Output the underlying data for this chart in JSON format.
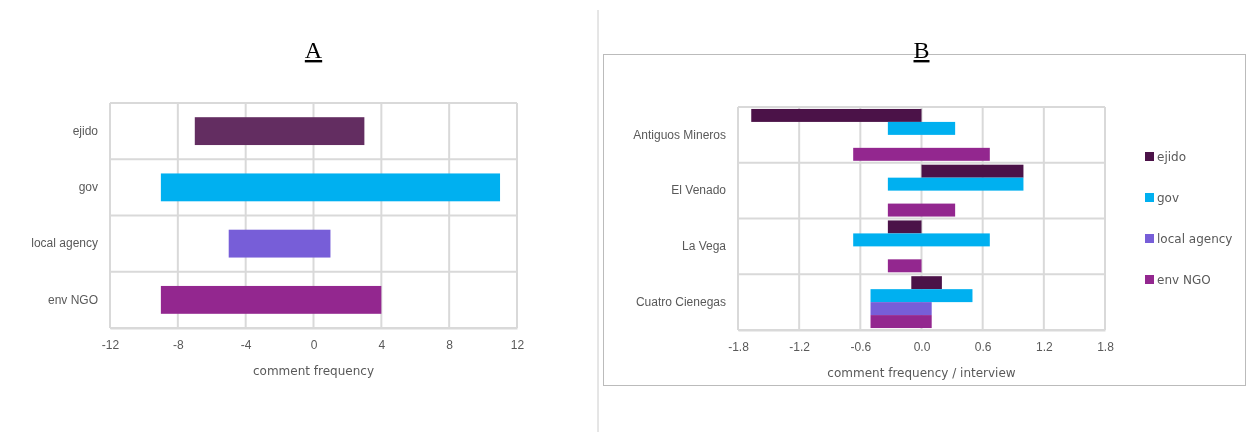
{
  "chart_data": [
    {
      "type": "bar",
      "orientation": "horizontal",
      "title": "A",
      "xlabel": "comment frequency",
      "categories": [
        "ejido",
        "gov",
        "local agency",
        "env NGO"
      ],
      "base": [
        -7,
        -9,
        -5,
        -9
      ],
      "values": [
        10,
        20,
        6,
        13
      ],
      "colors": [
        "#632d61",
        "#00b0f0",
        "#775ed8",
        "#93278f"
      ],
      "xlim": [
        -12,
        12
      ],
      "xticks": [
        -12,
        -8,
        -4,
        0,
        4,
        8,
        12
      ],
      "grid": true,
      "legend": false
    },
    {
      "type": "bar",
      "orientation": "horizontal",
      "title": "B",
      "xlabel": "comment frequency / interview",
      "categories": [
        "Antiguos Mineros",
        "El Venado",
        "La Vega",
        "Cuatro Cienegas"
      ],
      "series": [
        {
          "name": "ejido",
          "color": "#4b1248",
          "base": [
            -1.67,
            0,
            -0.33,
            -0.1
          ],
          "values": [
            1.67,
            1,
            0.33,
            0.3
          ]
        },
        {
          "name": "gov",
          "color": "#00b0f0",
          "base": [
            -0.33,
            -0.33,
            -0.67,
            -0.5
          ],
          "values": [
            0.66,
            1.33,
            1.34,
            1
          ]
        },
        {
          "name": "local agency",
          "color": "#775ed8",
          "base": [
            null,
            null,
            null,
            -0.5
          ],
          "values": [
            null,
            null,
            null,
            0.6
          ]
        },
        {
          "name": "env NGO",
          "color": "#93278f",
          "base": [
            -0.67,
            -0.33,
            -0.33,
            -0.5
          ],
          "values": [
            1.34,
            0.66,
            0.33,
            0.6
          ]
        }
      ],
      "xlim": [
        -1.8,
        1.8
      ],
      "xticks": [
        {
          "value": -1.8,
          "label": "-1.8"
        },
        {
          "value": -1.2,
          "label": "-1.2"
        },
        {
          "value": -0.6,
          "label": "-0.6"
        },
        {
          "value": 0,
          "label": "0.0"
        },
        {
          "value": 0.6,
          "label": "0.6"
        },
        {
          "value": 1.2,
          "label": "1.2"
        },
        {
          "value": 1.8,
          "label": "1.8"
        }
      ],
      "grid": true,
      "legend": "right"
    }
  ]
}
